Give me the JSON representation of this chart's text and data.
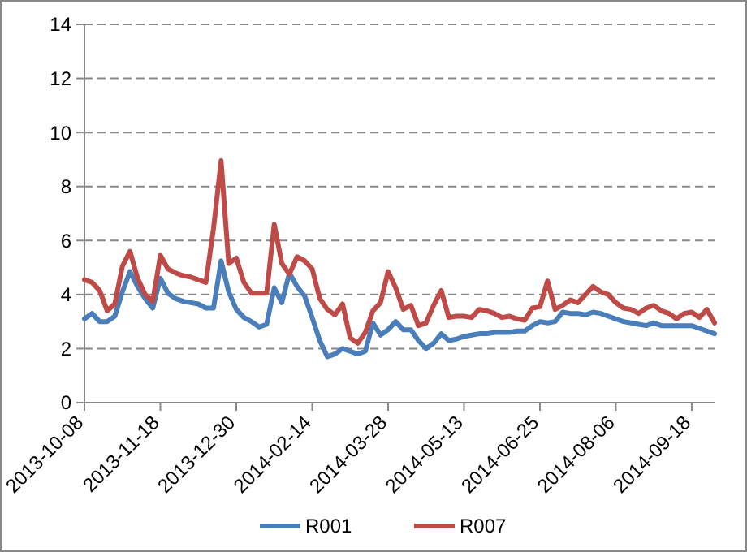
{
  "chart_data": {
    "type": "line",
    "categories": [
      "2013-10-08",
      null,
      null,
      null,
      null,
      null,
      null,
      null,
      null,
      null,
      "2013-11-18",
      null,
      null,
      null,
      null,
      null,
      null,
      null,
      null,
      null,
      "2013-12-30",
      null,
      null,
      null,
      null,
      null,
      null,
      null,
      null,
      null,
      "2014-02-14",
      null,
      null,
      null,
      null,
      null,
      null,
      null,
      null,
      null,
      "2014-03-28",
      null,
      null,
      null,
      null,
      null,
      null,
      null,
      null,
      null,
      "2014-05-13",
      null,
      null,
      null,
      null,
      null,
      null,
      null,
      null,
      null,
      "2014-06-25",
      null,
      null,
      null,
      null,
      null,
      null,
      null,
      null,
      null,
      "2014-08-06",
      null,
      null,
      null,
      null,
      null,
      null,
      null,
      null,
      null,
      "2014-09-18",
      null,
      null,
      null
    ],
    "series": [
      {
        "name": "R001",
        "color": "#4a7ebb",
        "values": [
          3.1,
          3.3,
          3.0,
          3.0,
          3.2,
          4.1,
          4.85,
          4.3,
          3.85,
          3.5,
          4.6,
          4.05,
          3.85,
          3.75,
          3.7,
          3.65,
          3.5,
          3.5,
          5.25,
          4.1,
          3.45,
          3.15,
          3.0,
          2.8,
          2.9,
          4.25,
          3.7,
          4.8,
          4.3,
          3.95,
          3.15,
          2.3,
          1.7,
          1.8,
          2.0,
          1.9,
          1.8,
          1.9,
          2.95,
          2.5,
          2.7,
          3.0,
          2.7,
          2.7,
          2.3,
          2.0,
          2.2,
          2.55,
          2.3,
          2.35,
          2.45,
          2.5,
          2.55,
          2.55,
          2.6,
          2.6,
          2.6,
          2.65,
          2.65,
          2.85,
          3.0,
          2.95,
          3.0,
          3.35,
          3.3,
          3.3,
          3.25,
          3.35,
          3.3,
          3.2,
          3.1,
          3.0,
          2.95,
          2.9,
          2.85,
          2.95,
          2.85,
          2.85,
          2.85,
          2.85,
          2.85,
          2.75,
          2.65,
          2.55
        ]
      },
      {
        "name": "R007",
        "color": "#be4b48",
        "values": [
          4.55,
          4.45,
          4.15,
          3.4,
          3.65,
          5.05,
          5.6,
          4.6,
          4.0,
          3.75,
          5.45,
          4.95,
          4.8,
          4.7,
          4.65,
          4.55,
          4.45,
          6.45,
          8.95,
          5.15,
          5.35,
          4.45,
          4.05,
          4.05,
          4.05,
          6.6,
          5.15,
          4.75,
          5.4,
          5.25,
          4.95,
          3.85,
          3.45,
          3.25,
          3.65,
          2.4,
          2.2,
          2.6,
          3.4,
          3.7,
          4.85,
          4.25,
          3.45,
          3.6,
          2.85,
          2.95,
          3.6,
          4.15,
          3.15,
          3.2,
          3.2,
          3.15,
          3.45,
          3.4,
          3.3,
          3.15,
          3.2,
          3.1,
          3.05,
          3.5,
          3.55,
          4.5,
          3.45,
          3.6,
          3.8,
          3.7,
          4.0,
          4.3,
          4.1,
          4.0,
          3.7,
          3.5,
          3.45,
          3.3,
          3.5,
          3.6,
          3.4,
          3.3,
          3.1,
          3.3,
          3.35,
          3.15,
          3.45,
          2.95
        ]
      }
    ],
    "ylim": [
      0,
      14
    ],
    "yticks": [
      0,
      2,
      4,
      6,
      8,
      10,
      12,
      14
    ],
    "grid": "y",
    "legend": "bottom",
    "marker": "none",
    "line_style": "solid"
  }
}
